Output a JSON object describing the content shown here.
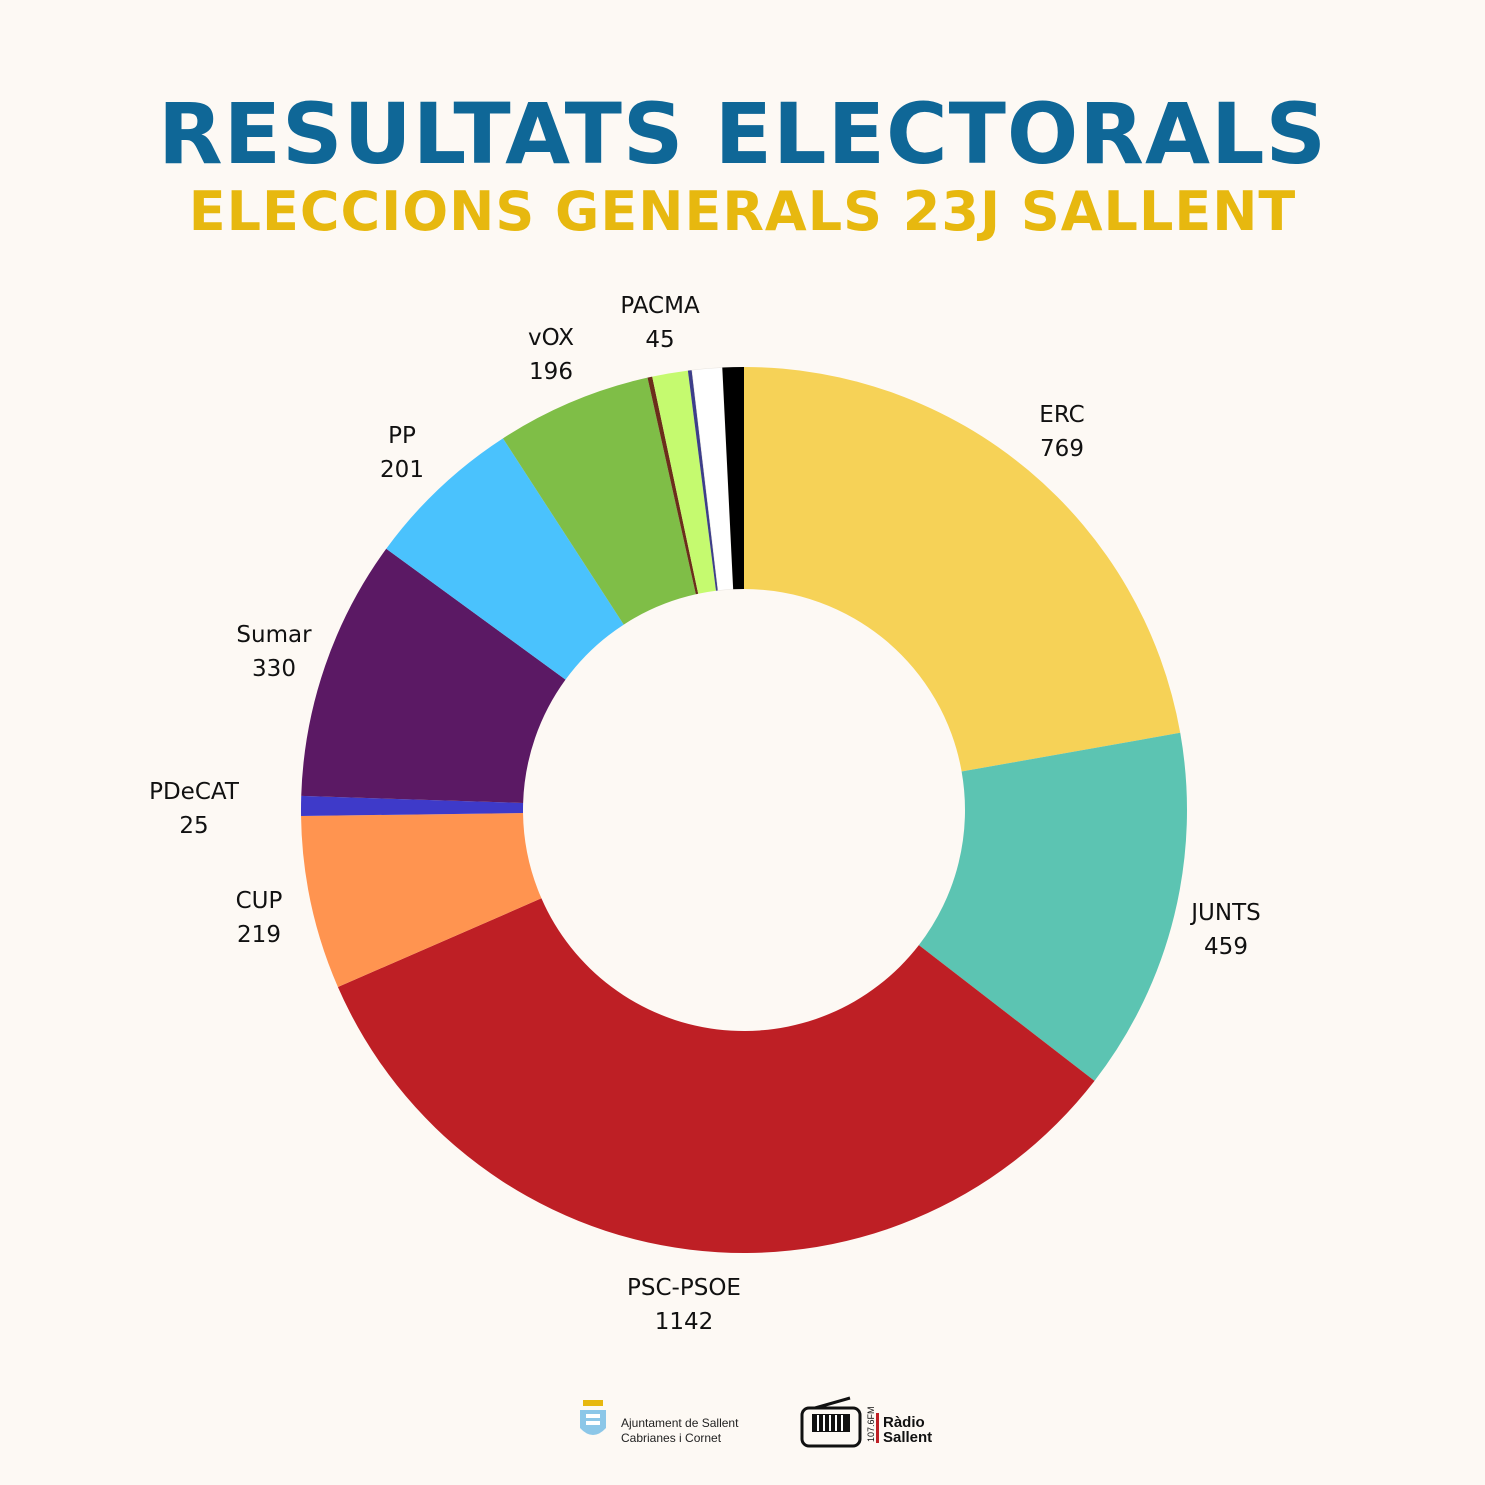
{
  "header": {
    "title": "RESULTATS ELECTORALS",
    "subtitle": "ELECCIONS GENERALS 23J SALLENT"
  },
  "chart_data": {
    "type": "pie",
    "donut": true,
    "legend": "none",
    "slices": [
      {
        "label": "ERC",
        "value": 769,
        "color": "#f6d257",
        "show_label": true
      },
      {
        "label": "JUNTS",
        "value": 459,
        "color": "#5cc4b2",
        "show_label": true
      },
      {
        "label": "PSC-PSOE",
        "value": 1142,
        "color": "#be1f25",
        "show_label": true
      },
      {
        "label": "CUP",
        "value": 219,
        "color": "#ff9450",
        "show_label": true
      },
      {
        "label": "PDeCAT",
        "value": 25,
        "color": "#3e3ac9",
        "show_label": true
      },
      {
        "label": "Sumar",
        "value": 330,
        "color": "#5b1964",
        "show_label": true
      },
      {
        "label": "PP",
        "value": 201,
        "color": "#4ac2fd",
        "show_label": true
      },
      {
        "label": "vOX",
        "value": 196,
        "color": "#7fbe47",
        "show_label": true
      },
      {
        "label": "",
        "value": 6,
        "color": "#6b2e1a",
        "show_label": false
      },
      {
        "label": "PACMA",
        "value": 45,
        "color": "#c5fa6f",
        "show_label": true
      },
      {
        "label": "",
        "value": 5,
        "color": "#3d3e8a",
        "show_label": false
      },
      {
        "label": "",
        "value": 38,
        "color": "#ffffff",
        "show_label": false
      },
      {
        "label": "",
        "value": 27,
        "color": "#000000",
        "show_label": false
      }
    ]
  },
  "footer": {
    "ajuntament_line1": "Ajuntament de Sallent",
    "ajuntament_line2": "Cabrianes i Cornet",
    "radio_line1": "Ràdio",
    "radio_line2": "Sallent",
    "radio_freq": "107.6FM"
  }
}
